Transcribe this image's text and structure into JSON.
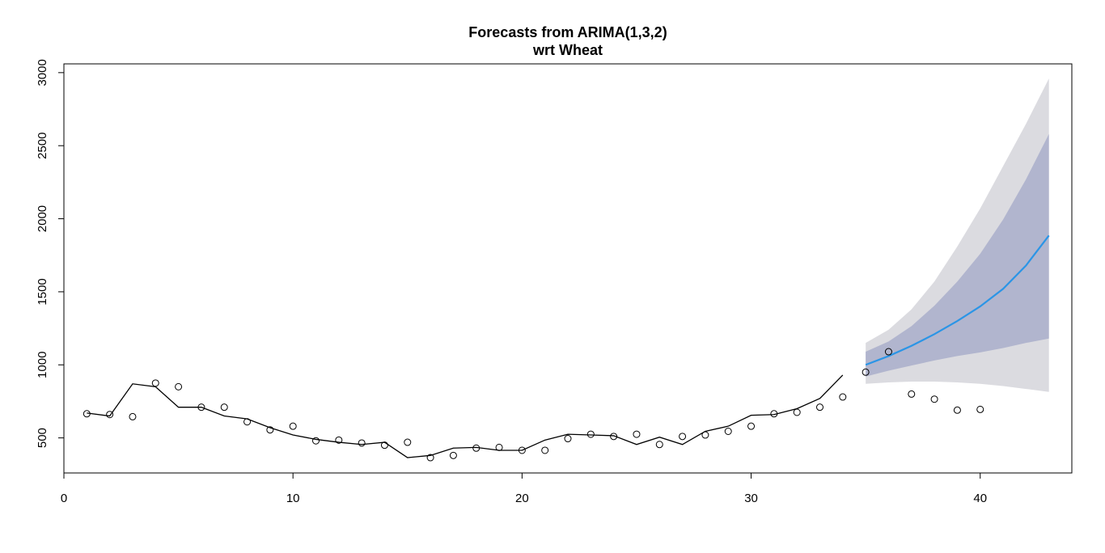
{
  "chart_data": {
    "type": "line",
    "title": "Forecasts from ARIMA(1,3,2)",
    "subtitle": "wrt  Wheat",
    "xlim": [
      0,
      44
    ],
    "ylim": [
      260,
      3060
    ],
    "x_ticks": [
      0,
      10,
      20,
      30,
      40
    ],
    "y_ticks": [
      500,
      1000,
      1500,
      2000,
      2500,
      3000
    ],
    "fitted": {
      "x": [
        1,
        2,
        3,
        4,
        5,
        6,
        7,
        8,
        9,
        10,
        11,
        12,
        13,
        14,
        15,
        16,
        17,
        18,
        19,
        20,
        21,
        22,
        23,
        24,
        25,
        26,
        27,
        28,
        29,
        30,
        31,
        32,
        33,
        34
      ],
      "values": [
        670,
        650,
        870,
        850,
        710,
        710,
        650,
        630,
        570,
        520,
        490,
        470,
        455,
        470,
        365,
        380,
        430,
        435,
        415,
        415,
        485,
        525,
        520,
        515,
        455,
        505,
        455,
        545,
        580,
        655,
        660,
        700,
        770,
        930
      ]
    },
    "observed": {
      "x": [
        1,
        2,
        3,
        4,
        5,
        6,
        7,
        8,
        9,
        10,
        11,
        12,
        13,
        14,
        15,
        16,
        17,
        18,
        19,
        20,
        21,
        22,
        23,
        24,
        25,
        26,
        27,
        28,
        29,
        30,
        31,
        32,
        33,
        34,
        35,
        36,
        37,
        38,
        39,
        40
      ],
      "values": [
        665,
        660,
        645,
        875,
        850,
        710,
        710,
        610,
        555,
        580,
        480,
        485,
        465,
        450,
        470,
        365,
        380,
        430,
        435,
        415,
        415,
        495,
        525,
        510,
        525,
        455,
        510,
        520,
        545,
        580,
        665,
        675,
        710,
        780,
        950,
        1090,
        800,
        765,
        690,
        695
      ]
    },
    "forecast": {
      "x": [
        35,
        36,
        37,
        38,
        39,
        40,
        41,
        42,
        43
      ],
      "mean": [
        1000,
        1060,
        1130,
        1210,
        1300,
        1400,
        1520,
        1680,
        1885
      ],
      "lo80": [
        920,
        960,
        995,
        1030,
        1060,
        1085,
        1115,
        1150,
        1180
      ],
      "hi80": [
        1090,
        1160,
        1265,
        1405,
        1570,
        1760,
        1995,
        2270,
        2580
      ],
      "lo95": [
        870,
        880,
        885,
        885,
        880,
        870,
        855,
        835,
        815
      ],
      "hi95": [
        1150,
        1240,
        1380,
        1570,
        1810,
        2070,
        2360,
        2650,
        2960
      ]
    },
    "colors": {
      "mean_line": "#2b95e6",
      "band80": "#b1b5ce",
      "band95": "#dbdbe0",
      "series": "#000000"
    },
    "grid": false,
    "legend": "none"
  }
}
